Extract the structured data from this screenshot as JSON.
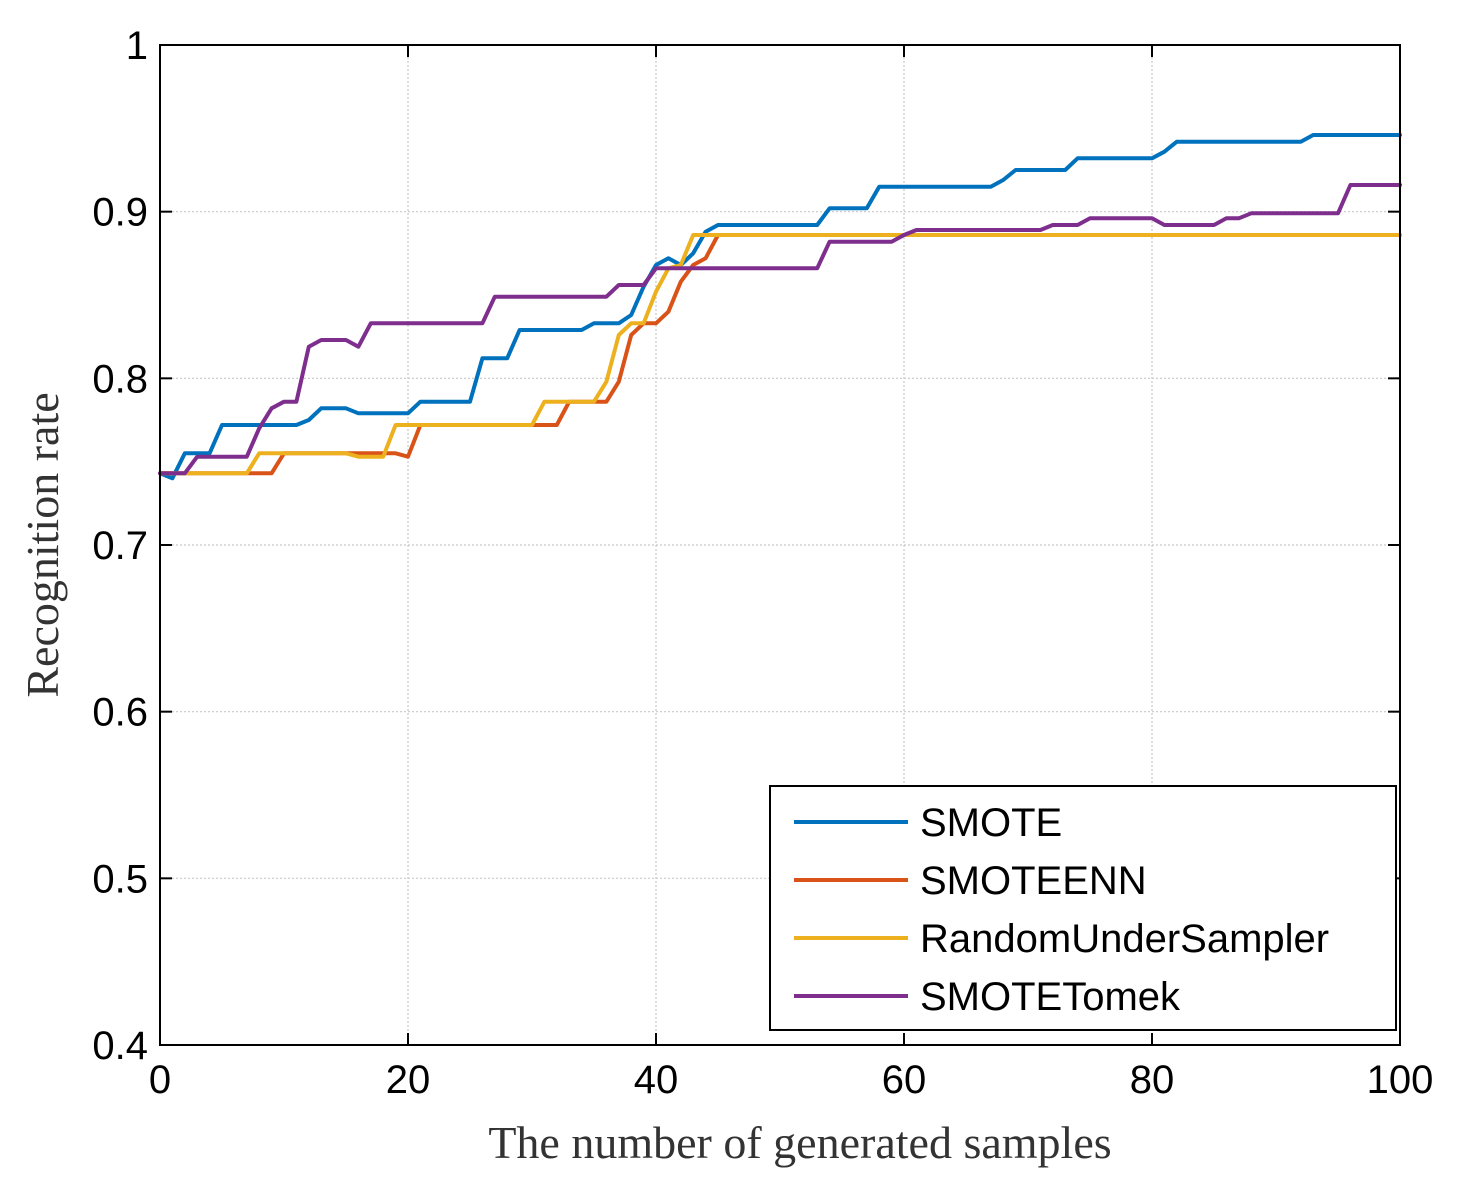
{
  "chart_data": {
    "type": "line",
    "title": "",
    "xlabel": "The number of  generated samples",
    "ylabel": "Recognition rate",
    "xlim": [
      0,
      100
    ],
    "ylim": [
      0.4,
      1.0
    ],
    "x_ticks": [
      0,
      20,
      40,
      60,
      80,
      100
    ],
    "x_tick_labels": [
      "0",
      "20",
      "40",
      "60",
      "80",
      "100"
    ],
    "y_ticks": [
      0.4,
      0.5,
      0.6,
      0.7,
      0.8,
      0.9,
      1.0
    ],
    "y_tick_labels": [
      "0.4",
      "0.5",
      "0.6",
      "0.7",
      "0.8",
      "0.9",
      "1"
    ],
    "grid": true,
    "legend_position": "bottom-right",
    "series": [
      {
        "name": "SMOTE",
        "color": "#0072BD",
        "points": [
          [
            0,
            0.743
          ],
          [
            1,
            0.74
          ],
          [
            2,
            0.755
          ],
          [
            4,
            0.755
          ],
          [
            5,
            0.772
          ],
          [
            11,
            0.772
          ],
          [
            12,
            0.775
          ],
          [
            13,
            0.782
          ],
          [
            15,
            0.782
          ],
          [
            16,
            0.779
          ],
          [
            20,
            0.779
          ],
          [
            21,
            0.786
          ],
          [
            25,
            0.786
          ],
          [
            26,
            0.812
          ],
          [
            28,
            0.812
          ],
          [
            29,
            0.829
          ],
          [
            34,
            0.829
          ],
          [
            35,
            0.833
          ],
          [
            37,
            0.833
          ],
          [
            38,
            0.838
          ],
          [
            39,
            0.855
          ],
          [
            40,
            0.868
          ],
          [
            41,
            0.872
          ],
          [
            42,
            0.868
          ],
          [
            43,
            0.875
          ],
          [
            44,
            0.888
          ],
          [
            45,
            0.892
          ],
          [
            53,
            0.892
          ],
          [
            54,
            0.902
          ],
          [
            57,
            0.902
          ],
          [
            58,
            0.915
          ],
          [
            67,
            0.915
          ],
          [
            68,
            0.919
          ],
          [
            69,
            0.925
          ],
          [
            73,
            0.925
          ],
          [
            74,
            0.932
          ],
          [
            80,
            0.932
          ],
          [
            81,
            0.936
          ],
          [
            82,
            0.942
          ],
          [
            92,
            0.942
          ],
          [
            93,
            0.946
          ],
          [
            100,
            0.946
          ]
        ]
      },
      {
        "name": "SMOTEENN",
        "color": "#D95319",
        "points": [
          [
            0,
            0.743
          ],
          [
            8,
            0.743
          ],
          [
            9,
            0.743
          ],
          [
            10,
            0.755
          ],
          [
            19,
            0.755
          ],
          [
            20,
            0.753
          ],
          [
            21,
            0.772
          ],
          [
            31,
            0.772
          ],
          [
            32,
            0.772
          ],
          [
            33,
            0.786
          ],
          [
            36,
            0.786
          ],
          [
            37,
            0.798
          ],
          [
            38,
            0.826
          ],
          [
            39,
            0.833
          ],
          [
            40,
            0.833
          ],
          [
            41,
            0.84
          ],
          [
            42,
            0.858
          ],
          [
            43,
            0.868
          ],
          [
            44,
            0.872
          ],
          [
            45,
            0.886
          ],
          [
            100,
            0.886
          ]
        ]
      },
      {
        "name": "RandomUnderSampler",
        "color": "#EDB120",
        "points": [
          [
            0,
            0.743
          ],
          [
            7,
            0.743
          ],
          [
            8,
            0.755
          ],
          [
            15,
            0.755
          ],
          [
            16,
            0.753
          ],
          [
            18,
            0.753
          ],
          [
            19,
            0.772
          ],
          [
            30,
            0.772
          ],
          [
            31,
            0.786
          ],
          [
            35,
            0.786
          ],
          [
            36,
            0.798
          ],
          [
            37,
            0.826
          ],
          [
            38,
            0.833
          ],
          [
            39,
            0.833
          ],
          [
            40,
            0.852
          ],
          [
            41,
            0.866
          ],
          [
            42,
            0.868
          ],
          [
            43,
            0.886
          ],
          [
            100,
            0.886
          ]
        ]
      },
      {
        "name": "SMOTETomek",
        "color": "#7E2F8E",
        "points": [
          [
            0,
            0.743
          ],
          [
            2,
            0.743
          ],
          [
            3,
            0.753
          ],
          [
            7,
            0.753
          ],
          [
            8,
            0.77
          ],
          [
            9,
            0.782
          ],
          [
            10,
            0.786
          ],
          [
            11,
            0.786
          ],
          [
            12,
            0.819
          ],
          [
            13,
            0.823
          ],
          [
            15,
            0.823
          ],
          [
            16,
            0.819
          ],
          [
            17,
            0.833
          ],
          [
            26,
            0.833
          ],
          [
            27,
            0.849
          ],
          [
            36,
            0.849
          ],
          [
            37,
            0.856
          ],
          [
            39,
            0.856
          ],
          [
            40,
            0.866
          ],
          [
            53,
            0.866
          ],
          [
            54,
            0.882
          ],
          [
            59,
            0.882
          ],
          [
            60,
            0.886
          ],
          [
            61,
            0.889
          ],
          [
            71,
            0.889
          ],
          [
            72,
            0.892
          ],
          [
            74,
            0.892
          ],
          [
            75,
            0.896
          ],
          [
            80,
            0.896
          ],
          [
            81,
            0.892
          ],
          [
            85,
            0.892
          ],
          [
            86,
            0.896
          ],
          [
            87,
            0.896
          ],
          [
            88,
            0.899
          ],
          [
            95,
            0.899
          ],
          [
            96,
            0.916
          ],
          [
            100,
            0.916
          ]
        ]
      }
    ]
  }
}
